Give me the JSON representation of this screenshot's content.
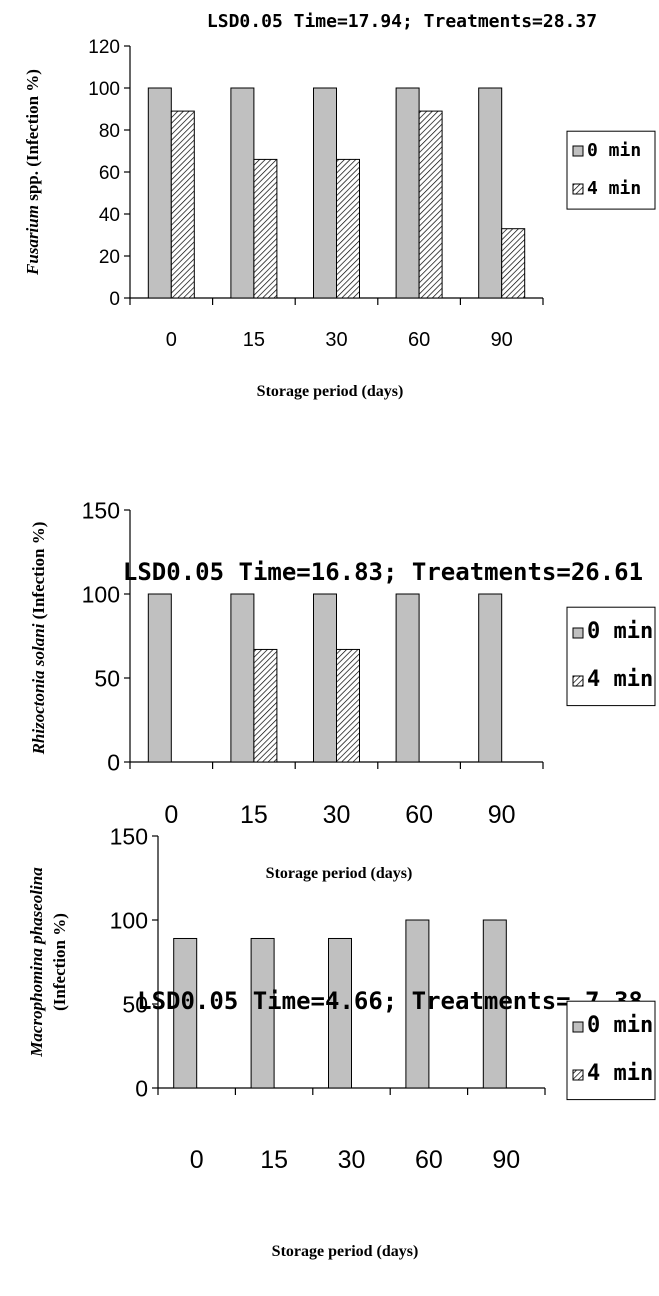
{
  "colors": {
    "series_0min": "#c0c0c0",
    "series_4min_hatch": "#000000",
    "axis": "#000000",
    "background": "#ffffff"
  },
  "chart_data": [
    {
      "type": "bar",
      "title": "LSD0.05 Time=17.94; Treatments=28.37",
      "xlabel": "Storage period (days)",
      "ylabel_italic": "Fusarium",
      "ylabel_rest": " spp. (Infection %)",
      "categories": [
        "0",
        "15",
        "30",
        "60",
        "90"
      ],
      "ylim": [
        0,
        120
      ],
      "yticks": [
        "0",
        "20",
        "40",
        "60",
        "80",
        "100",
        "120"
      ],
      "legend": [
        "0 min",
        "4 min"
      ],
      "legend_position": "right",
      "grid": false,
      "series": [
        {
          "name": "0 min",
          "values": [
            100,
            100,
            100,
            100,
            100
          ]
        },
        {
          "name": "4 min",
          "values": [
            89,
            66,
            66,
            89,
            33
          ]
        }
      ]
    },
    {
      "type": "bar",
      "title": "LSD0.05 Time=16.83; Treatments=26.61",
      "xlabel": "Storage period (days)",
      "ylabel_italic": "Rhizoctonia solani",
      "ylabel_rest": " (Infection %)",
      "categories": [
        "0",
        "15",
        "30",
        "60",
        "90"
      ],
      "ylim": [
        0,
        150
      ],
      "yticks": [
        "0",
        "50",
        "100",
        "150"
      ],
      "legend": [
        "0 min",
        "4 min"
      ],
      "legend_position": "right",
      "grid": false,
      "series": [
        {
          "name": "0 min",
          "values": [
            100,
            100,
            100,
            100,
            100
          ]
        },
        {
          "name": "4 min",
          "values": [
            0,
            67,
            67,
            0,
            0
          ]
        }
      ]
    },
    {
      "type": "bar",
      "title": "LSD0.05 Time=4.66; Treatments= 7.38",
      "xlabel": "Storage period (days)",
      "ylabel_italic": "Macrophomina phaseolina",
      "ylabel_rest": "(Infection %)",
      "categories": [
        "0",
        "15",
        "30",
        "60",
        "90"
      ],
      "ylim": [
        0,
        150
      ],
      "yticks": [
        "0",
        "50",
        "100",
        "150"
      ],
      "legend": [
        "0 min",
        "4 min"
      ],
      "legend_position": "right",
      "grid": false,
      "series": [
        {
          "name": "0 min",
          "values": [
            89,
            89,
            89,
            100,
            100
          ]
        },
        {
          "name": "4 min",
          "values": [
            0,
            0,
            0,
            0,
            0
          ]
        }
      ]
    }
  ]
}
